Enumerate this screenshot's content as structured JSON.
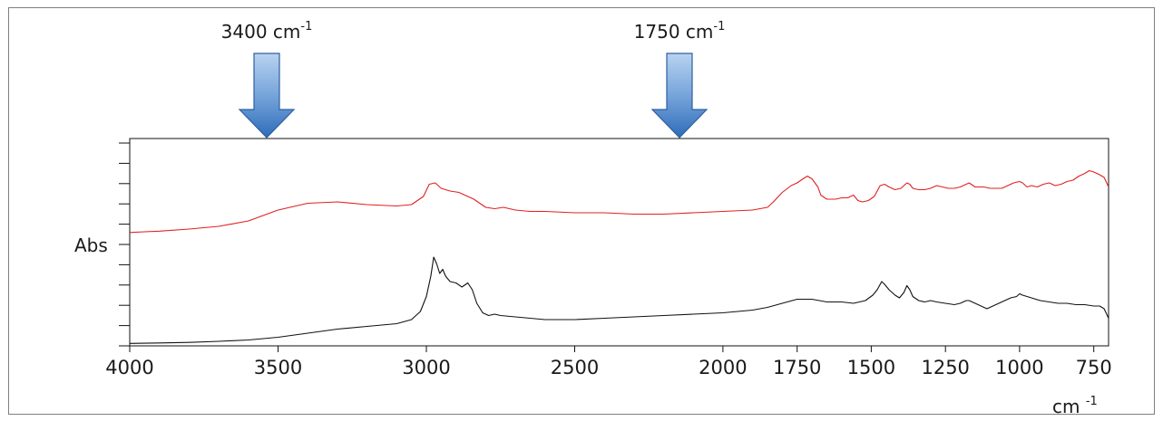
{
  "chart_data": {
    "type": "line",
    "title": "",
    "xlabel_main": "cm",
    "xlabel_sup": "-1",
    "ylabel": "Abs",
    "xlim": [
      4000,
      700
    ],
    "x_reversed": true,
    "x_ticks": [
      4000,
      3500,
      3000,
      2500,
      2000,
      1750,
      1500,
      1250,
      1000,
      750
    ],
    "y_minor_ticks": 10,
    "legend": "none",
    "grid": false,
    "annotations": [
      {
        "text": "3400 cm",
        "sup": "-1",
        "x": 3400,
        "marker": "down-arrow"
      },
      {
        "text": "1750 cm",
        "sup": "-1",
        "x": 1750,
        "marker": "down-arrow"
      }
    ],
    "series": [
      {
        "color": "#e02020",
        "points": [
          [
            4000,
            0.355
          ],
          [
            3950,
            0.36
          ],
          [
            3900,
            0.365
          ],
          [
            3800,
            0.38
          ],
          [
            3700,
            0.4
          ],
          [
            3600,
            0.44
          ],
          [
            3500,
            0.52
          ],
          [
            3400,
            0.57
          ],
          [
            3300,
            0.58
          ],
          [
            3200,
            0.56
          ],
          [
            3100,
            0.55
          ],
          [
            3050,
            0.56
          ],
          [
            3010,
            0.62
          ],
          [
            2990,
            0.71
          ],
          [
            2970,
            0.72
          ],
          [
            2950,
            0.68
          ],
          [
            2920,
            0.66
          ],
          [
            2890,
            0.65
          ],
          [
            2860,
            0.62
          ],
          [
            2840,
            0.6
          ],
          [
            2820,
            0.57
          ],
          [
            2800,
            0.54
          ],
          [
            2770,
            0.53
          ],
          [
            2740,
            0.54
          ],
          [
            2700,
            0.52
          ],
          [
            2650,
            0.51
          ],
          [
            2600,
            0.51
          ],
          [
            2500,
            0.5
          ],
          [
            2400,
            0.5
          ],
          [
            2300,
            0.49
          ],
          [
            2200,
            0.49
          ],
          [
            2100,
            0.5
          ],
          [
            2000,
            0.51
          ],
          [
            1900,
            0.52
          ],
          [
            1850,
            0.54
          ],
          [
            1830,
            0.58
          ],
          [
            1800,
            0.65
          ],
          [
            1770,
            0.7
          ],
          [
            1750,
            0.72
          ],
          [
            1730,
            0.75
          ],
          [
            1715,
            0.77
          ],
          [
            1700,
            0.75
          ],
          [
            1680,
            0.69
          ],
          [
            1670,
            0.63
          ],
          [
            1650,
            0.6
          ],
          [
            1620,
            0.6
          ],
          [
            1600,
            0.61
          ],
          [
            1580,
            0.61
          ],
          [
            1560,
            0.63
          ],
          [
            1545,
            0.59
          ],
          [
            1530,
            0.58
          ],
          [
            1510,
            0.59
          ],
          [
            1490,
            0.62
          ],
          [
            1470,
            0.7
          ],
          [
            1455,
            0.71
          ],
          [
            1440,
            0.69
          ],
          [
            1420,
            0.67
          ],
          [
            1400,
            0.68
          ],
          [
            1380,
            0.72
          ],
          [
            1370,
            0.71
          ],
          [
            1360,
            0.68
          ],
          [
            1340,
            0.67
          ],
          [
            1320,
            0.67
          ],
          [
            1300,
            0.68
          ],
          [
            1280,
            0.7
          ],
          [
            1260,
            0.69
          ],
          [
            1240,
            0.68
          ],
          [
            1220,
            0.68
          ],
          [
            1200,
            0.69
          ],
          [
            1180,
            0.71
          ],
          [
            1170,
            0.72
          ],
          [
            1150,
            0.69
          ],
          [
            1120,
            0.69
          ],
          [
            1100,
            0.68
          ],
          [
            1080,
            0.68
          ],
          [
            1060,
            0.68
          ],
          [
            1040,
            0.7
          ],
          [
            1020,
            0.72
          ],
          [
            1000,
            0.73
          ],
          [
            990,
            0.72
          ],
          [
            975,
            0.69
          ],
          [
            960,
            0.7
          ],
          [
            940,
            0.69
          ],
          [
            920,
            0.71
          ],
          [
            900,
            0.72
          ],
          [
            880,
            0.7
          ],
          [
            860,
            0.71
          ],
          [
            840,
            0.73
          ],
          [
            820,
            0.74
          ],
          [
            800,
            0.77
          ],
          [
            780,
            0.79
          ],
          [
            765,
            0.81
          ],
          [
            750,
            0.8
          ],
          [
            730,
            0.78
          ],
          [
            715,
            0.76
          ],
          [
            700,
            0.69
          ]
        ]
      },
      {
        "color": "#111111",
        "points": [
          [
            4000,
            0.005
          ],
          [
            3950,
            0.006
          ],
          [
            3900,
            0.008
          ],
          [
            3800,
            0.012
          ],
          [
            3700,
            0.02
          ],
          [
            3600,
            0.03
          ],
          [
            3500,
            0.05
          ],
          [
            3400,
            0.08
          ],
          [
            3300,
            0.11
          ],
          [
            3200,
            0.13
          ],
          [
            3100,
            0.15
          ],
          [
            3050,
            0.18
          ],
          [
            3020,
            0.24
          ],
          [
            3000,
            0.35
          ],
          [
            2985,
            0.5
          ],
          [
            2975,
            0.64
          ],
          [
            2965,
            0.59
          ],
          [
            2955,
            0.52
          ],
          [
            2945,
            0.55
          ],
          [
            2935,
            0.5
          ],
          [
            2920,
            0.46
          ],
          [
            2900,
            0.45
          ],
          [
            2880,
            0.42
          ],
          [
            2860,
            0.45
          ],
          [
            2845,
            0.4
          ],
          [
            2830,
            0.3
          ],
          [
            2810,
            0.23
          ],
          [
            2790,
            0.21
          ],
          [
            2770,
            0.22
          ],
          [
            2750,
            0.21
          ],
          [
            2700,
            0.2
          ],
          [
            2650,
            0.19
          ],
          [
            2600,
            0.18
          ],
          [
            2500,
            0.18
          ],
          [
            2400,
            0.19
          ],
          [
            2300,
            0.2
          ],
          [
            2200,
            0.21
          ],
          [
            2100,
            0.22
          ],
          [
            2000,
            0.23
          ],
          [
            1900,
            0.25
          ],
          [
            1850,
            0.27
          ],
          [
            1800,
            0.3
          ],
          [
            1750,
            0.33
          ],
          [
            1700,
            0.33
          ],
          [
            1650,
            0.31
          ],
          [
            1600,
            0.31
          ],
          [
            1560,
            0.3
          ],
          [
            1520,
            0.32
          ],
          [
            1495,
            0.36
          ],
          [
            1480,
            0.4
          ],
          [
            1465,
            0.46
          ],
          [
            1455,
            0.44
          ],
          [
            1440,
            0.4
          ],
          [
            1420,
            0.36
          ],
          [
            1405,
            0.34
          ],
          [
            1390,
            0.38
          ],
          [
            1380,
            0.43
          ],
          [
            1370,
            0.4
          ],
          [
            1360,
            0.35
          ],
          [
            1340,
            0.32
          ],
          [
            1320,
            0.31
          ],
          [
            1300,
            0.32
          ],
          [
            1280,
            0.31
          ],
          [
            1250,
            0.3
          ],
          [
            1220,
            0.29
          ],
          [
            1200,
            0.3
          ],
          [
            1180,
            0.32
          ],
          [
            1170,
            0.32
          ],
          [
            1150,
            0.3
          ],
          [
            1130,
            0.28
          ],
          [
            1110,
            0.26
          ],
          [
            1090,
            0.28
          ],
          [
            1060,
            0.31
          ],
          [
            1030,
            0.34
          ],
          [
            1010,
            0.35
          ],
          [
            1000,
            0.37
          ],
          [
            990,
            0.36
          ],
          [
            975,
            0.35
          ],
          [
            960,
            0.34
          ],
          [
            930,
            0.32
          ],
          [
            900,
            0.31
          ],
          [
            870,
            0.3
          ],
          [
            840,
            0.3
          ],
          [
            810,
            0.29
          ],
          [
            780,
            0.29
          ],
          [
            750,
            0.28
          ],
          [
            730,
            0.28
          ],
          [
            715,
            0.26
          ],
          [
            700,
            0.19
          ]
        ]
      }
    ]
  }
}
